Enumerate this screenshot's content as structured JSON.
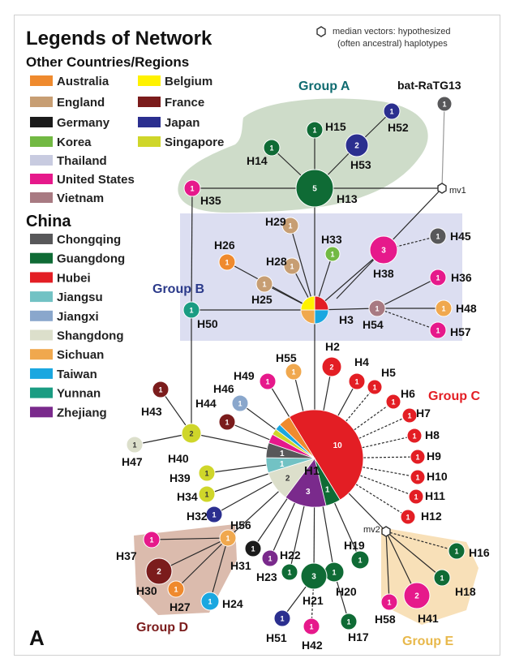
{
  "legend": {
    "title": "Legends of Network",
    "other_heading": "Other Countries/Regions",
    "china_heading": "China",
    "median_vector_line1": "median vectors: hypothesized",
    "median_vector_line2": "(often ancestral) haplotypes",
    "other_countries": [
      {
        "label": "Australia",
        "color": "#ef8a2e"
      },
      {
        "label": "England",
        "color": "#c79e73"
      },
      {
        "label": "Germany",
        "color": "#1b1b1b"
      },
      {
        "label": "Korea",
        "color": "#72b943"
      },
      {
        "label": "Thailand",
        "color": "#c8cbe0"
      },
      {
        "label": "United States",
        "color": "#e6198b"
      },
      {
        "label": "Vietnam",
        "color": "#a87a82"
      },
      {
        "label": "Belgium",
        "color": "#fff200"
      },
      {
        "label": "France",
        "color": "#7b1c1c"
      },
      {
        "label": "Japan",
        "color": "#2b2f8f"
      },
      {
        "label": "Singapore",
        "color": "#cfd62a"
      }
    ],
    "china": [
      {
        "label": "Chongqing",
        "color": "#58585a"
      },
      {
        "label": "Guangdong",
        "color": "#0f6b35"
      },
      {
        "label": "Hubei",
        "color": "#e31e24"
      },
      {
        "label": "Jiangsu",
        "color": "#72c2c4"
      },
      {
        "label": "Jiangxi",
        "color": "#8aa7cc"
      },
      {
        "label": "Shangdong",
        "color": "#dcdfcb"
      },
      {
        "label": "Sichuan",
        "color": "#f0a84e"
      },
      {
        "label": "Taiwan",
        "color": "#1aa7e0"
      },
      {
        "label": "Yunnan",
        "color": "#1a9c82"
      },
      {
        "label": "Zhejiang",
        "color": "#7a2a8c"
      }
    ]
  },
  "groups": {
    "a": {
      "label": "Group A",
      "color": "#0f6b70"
    },
    "b": {
      "label": "Group B",
      "color": "#2b3a8a"
    },
    "c": {
      "label": "Group C",
      "color": "#e31e24"
    },
    "d": {
      "label": "Group D",
      "color": "#7b1c1c"
    },
    "e": {
      "label": "Group E",
      "color": "#e8b84a"
    }
  },
  "mv_labels": {
    "mv1": "mv1",
    "mv2": "mv2"
  },
  "panel_label": "A",
  "nodes": {
    "H1": {
      "label": "H1",
      "count": "10"
    },
    "H1_sectors": [
      "1",
      "1",
      "2",
      "3",
      "1"
    ],
    "H2": {
      "label": "H2",
      "count": "2"
    },
    "H3": {
      "label": "H3",
      "count": ""
    },
    "H4": {
      "label": "H4",
      "count": "1"
    },
    "H5": {
      "label": "H5",
      "count": "1"
    },
    "H6": {
      "label": "H6",
      "count": "1"
    },
    "H7": {
      "label": "H7",
      "count": "1"
    },
    "H8": {
      "label": "H8",
      "count": "1"
    },
    "H9": {
      "label": "H9",
      "count": "1"
    },
    "H10": {
      "label": "H10",
      "count": "1"
    },
    "H11": {
      "label": "H11",
      "count": "1"
    },
    "H12": {
      "label": "H12",
      "count": "1"
    },
    "H13": {
      "label": "H13",
      "count": "5"
    },
    "H14": {
      "label": "H14",
      "count": "1"
    },
    "H15": {
      "label": "H15",
      "count": "1"
    },
    "H16": {
      "label": "H16",
      "count": "1"
    },
    "H17": {
      "label": "H17",
      "count": "1"
    },
    "H18": {
      "label": "H18",
      "count": "1"
    },
    "H19": {
      "label": "H19",
      "count": "1"
    },
    "H20": {
      "label": "H20",
      "count": "1"
    },
    "H21": {
      "label": "H21",
      "count": "3"
    },
    "H22": {
      "label": "H22",
      "count": "1"
    },
    "H23": {
      "label": "H23",
      "count": "1"
    },
    "H24": {
      "label": "H24",
      "count": "1"
    },
    "H25": {
      "label": "H25",
      "count": "1"
    },
    "H26": {
      "label": "H26",
      "count": "1"
    },
    "H27": {
      "label": "H27",
      "count": "1"
    },
    "H28": {
      "label": "H28",
      "count": "1"
    },
    "H29": {
      "label": "H29",
      "count": "1"
    },
    "H30": {
      "label": "H30",
      "count": "2"
    },
    "H31": {
      "label": "H31",
      "count": "1"
    },
    "H32": {
      "label": "H32",
      "count": "1"
    },
    "H33": {
      "label": "H33",
      "count": "1"
    },
    "H34": {
      "label": "H34",
      "count": "1"
    },
    "H35": {
      "label": "H35",
      "count": "1"
    },
    "H36": {
      "label": "H36",
      "count": "1"
    },
    "H37": {
      "label": "H37",
      "count": "1"
    },
    "H38": {
      "label": "H38",
      "count": "3"
    },
    "H39": {
      "label": "H39",
      "count": "1"
    },
    "H40": {
      "label": "H40",
      "count": "2"
    },
    "H41": {
      "label": "H41",
      "count": "2"
    },
    "H42": {
      "label": "H42",
      "count": "1"
    },
    "H43": {
      "label": "H43",
      "count": "1"
    },
    "H44": {
      "label": "H44",
      "count": "1"
    },
    "H45": {
      "label": "H45",
      "count": "1"
    },
    "H46": {
      "label": "H46",
      "count": "1"
    },
    "H47": {
      "label": "H47",
      "count": "1"
    },
    "H48": {
      "label": "H48",
      "count": "1"
    },
    "H49": {
      "label": "H49",
      "count": "1"
    },
    "H50": {
      "label": "H50",
      "count": "1"
    },
    "H51": {
      "label": "H51",
      "count": "1"
    },
    "H52": {
      "label": "H52",
      "count": "1"
    },
    "H53": {
      "label": "H53",
      "count": "2"
    },
    "H54": {
      "label": "H54",
      "count": "1"
    },
    "H55": {
      "label": "H55",
      "count": "1"
    },
    "H56": {
      "label": "H56",
      "count": "1"
    },
    "H57": {
      "label": "H57",
      "count": "1"
    },
    "H58": {
      "label": "H58",
      "count": "1"
    },
    "RaTG13": {
      "label": "bat-RaTG13",
      "count": "1"
    }
  }
}
